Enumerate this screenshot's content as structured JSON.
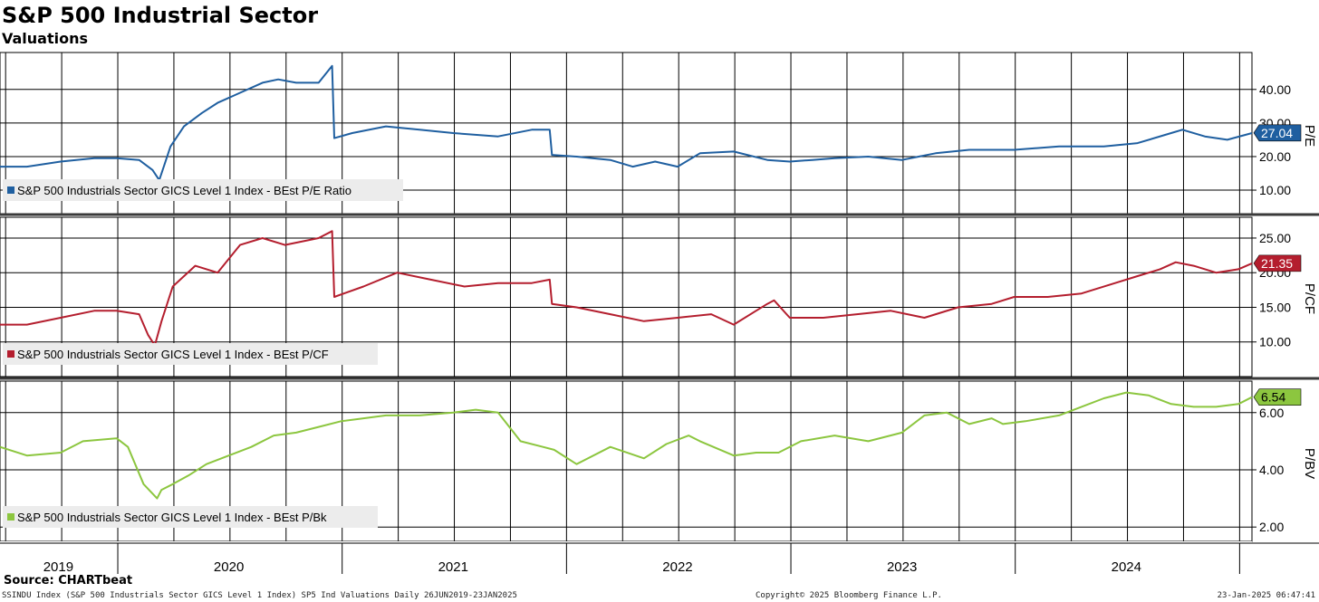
{
  "title": "S&P 500 Industrial Sector",
  "subtitle": "Valuations",
  "source": "Source: CHARTbeat",
  "footer": {
    "left": "SSINDU Index (S&P 500 Industrials Sector GICS Level 1 Index) SP5 Ind Valuations  Daily 26JUN2019-23JAN2025",
    "center": "Copyright© 2025 Bloomberg Finance L.P.",
    "right": "23-Jan-2025 06:47:41"
  },
  "chart_data": [
    {
      "type": "line",
      "panel": "pe",
      "ylabel": "P/E",
      "ylim": [
        3,
        51
      ],
      "yticks": [
        "10.00",
        "20.00",
        "30.00",
        "40.00"
      ],
      "series": [
        {
          "name": "S&P 500 Industrials Sector GICS Level 1 Index - BEst P/E Ratio",
          "color": "#1f5fa0",
          "last_value": "27.04",
          "x": [
            2019.48,
            2019.6,
            2019.75,
            2019.9,
            2020.0,
            2020.1,
            2020.16,
            2020.19,
            2020.21,
            2020.24,
            2020.3,
            2020.38,
            2020.45,
            2020.55,
            2020.65,
            2020.72,
            2020.8,
            2020.9,
            2020.96,
            2020.97,
            2021.05,
            2021.2,
            2021.35,
            2021.5,
            2021.7,
            2021.85,
            2021.93,
            2021.94,
            2022.05,
            2022.2,
            2022.3,
            2022.4,
            2022.5,
            2022.6,
            2022.75,
            2022.9,
            2023.0,
            2023.1,
            2023.2,
            2023.35,
            2023.5,
            2023.65,
            2023.8,
            2024.0,
            2024.2,
            2024.4,
            2024.55,
            2024.7,
            2024.75,
            2024.85,
            2024.95,
            2025.06
          ],
          "y": [
            17,
            17,
            18.5,
            19.5,
            19.5,
            19,
            16,
            13,
            17,
            23,
            29,
            33,
            36,
            39,
            42,
            43,
            42,
            42,
            47,
            25.5,
            27,
            29,
            28,
            27,
            26,
            28,
            28,
            20.5,
            20,
            19,
            17,
            18.5,
            17,
            21,
            21.5,
            19,
            18.5,
            19,
            19.5,
            20,
            19,
            21,
            22,
            22,
            23,
            23,
            24,
            27,
            28,
            26,
            25,
            27
          ]
        }
      ]
    },
    {
      "type": "line",
      "panel": "pcf",
      "ylabel": "P/CF",
      "ylim": [
        5,
        28
      ],
      "yticks": [
        "10.00",
        "15.00",
        "20.00",
        "25.00"
      ],
      "series": [
        {
          "name": "S&P 500 Industrials Sector GICS Level 1 Index - BEst P/CF",
          "color": "#b41e2e",
          "last_value": "21.35",
          "x": [
            2019.48,
            2019.6,
            2019.75,
            2019.9,
            2020.0,
            2020.1,
            2020.14,
            2020.17,
            2020.2,
            2020.25,
            2020.35,
            2020.45,
            2020.55,
            2020.65,
            2020.75,
            2020.9,
            2020.96,
            2020.97,
            2021.1,
            2021.25,
            2021.4,
            2021.55,
            2021.7,
            2021.85,
            2021.93,
            2021.94,
            2022.05,
            2022.2,
            2022.35,
            2022.5,
            2022.65,
            2022.75,
            2022.85,
            2022.9,
            2022.93,
            2023.0,
            2023.15,
            2023.3,
            2023.45,
            2023.6,
            2023.75,
            2023.9,
            2024.0,
            2024.15,
            2024.3,
            2024.45,
            2024.55,
            2024.65,
            2024.72,
            2024.8,
            2024.9,
            2025.0,
            2025.06
          ],
          "y": [
            12.5,
            12.5,
            13.5,
            14.5,
            14.5,
            14,
            11,
            9.5,
            13,
            18,
            21,
            20,
            24,
            25,
            24,
            25,
            26,
            16.5,
            18,
            20,
            19,
            18,
            18.5,
            18.5,
            19,
            15.5,
            15,
            14,
            13,
            13.5,
            14,
            12.5,
            14.5,
            15.5,
            16,
            13.5,
            13.5,
            14,
            14.5,
            13.5,
            15,
            15.5,
            16.5,
            16.5,
            17,
            18.5,
            19.5,
            20.5,
            21.5,
            21,
            20,
            20.5,
            21.35
          ]
        }
      ]
    },
    {
      "type": "line",
      "panel": "pb",
      "ylabel": "P/BV",
      "ylim": [
        1.5,
        7.1
      ],
      "yticks": [
        "2.00",
        "4.00",
        "6.00"
      ],
      "series": [
        {
          "name": "S&P 500 Industrials Sector GICS Level 1 Index - BEst P/Bk",
          "color": "#8cc63f",
          "last_value": "6.54",
          "x": [
            2019.48,
            2019.6,
            2019.75,
            2019.85,
            2020.0,
            2020.05,
            2020.12,
            2020.18,
            2020.2,
            2020.25,
            2020.32,
            2020.4,
            2020.5,
            2020.6,
            2020.7,
            2020.8,
            2020.9,
            2021.0,
            2021.1,
            2021.2,
            2021.35,
            2021.5,
            2021.6,
            2021.7,
            2021.8,
            2021.9,
            2021.95,
            2022.05,
            2022.2,
            2022.35,
            2022.45,
            2022.55,
            2022.6,
            2022.75,
            2022.85,
            2022.95,
            2023.05,
            2023.2,
            2023.35,
            2023.5,
            2023.6,
            2023.7,
            2023.8,
            2023.9,
            2023.95,
            2024.05,
            2024.2,
            2024.3,
            2024.4,
            2024.5,
            2024.6,
            2024.7,
            2024.8,
            2024.9,
            2025.0,
            2025.06
          ],
          "y": [
            4.8,
            4.5,
            4.6,
            5.0,
            5.1,
            4.8,
            3.5,
            3.0,
            3.3,
            3.5,
            3.8,
            4.2,
            4.5,
            4.8,
            5.2,
            5.3,
            5.5,
            5.7,
            5.8,
            5.9,
            5.9,
            6.0,
            6.1,
            6.0,
            5.0,
            4.8,
            4.7,
            4.2,
            4.8,
            4.4,
            4.9,
            5.2,
            5.0,
            4.5,
            4.6,
            4.6,
            5.0,
            5.2,
            5.0,
            5.3,
            5.9,
            6.0,
            5.6,
            5.8,
            5.6,
            5.7,
            5.9,
            6.2,
            6.5,
            6.7,
            6.6,
            6.3,
            6.2,
            6.2,
            6.3,
            6.54
          ]
        }
      ]
    }
  ],
  "x_axis": {
    "range": [
      2019.48,
      2025.06
    ],
    "years": [
      "2019",
      "2020",
      "2021",
      "2022",
      "2023",
      "2024"
    ]
  }
}
